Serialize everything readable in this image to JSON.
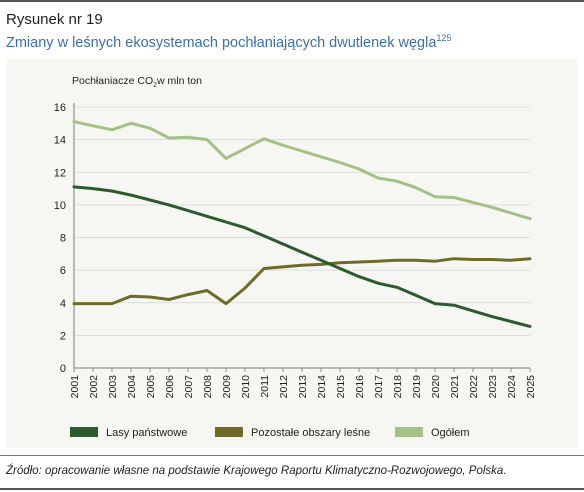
{
  "figure": {
    "number": "Rysunek nr 19",
    "title": "Zmiany w leśnych ekosystemach pochłaniających dwutlenek węgla",
    "title_footnote": "125",
    "source": "Źródło: opracowanie własne na podstawie Krajowego Raportu Klimatyczno-Rozwojowego, Polska."
  },
  "chart_data": {
    "type": "line",
    "ylabel_prefix": "Pochłaniacze CO",
    "ylabel_sub": "2",
    "ylabel_suffix": "w mln ton",
    "ylim": [
      0,
      16
    ],
    "yticks": [
      0,
      2,
      4,
      6,
      8,
      10,
      12,
      14,
      16
    ],
    "grid": true,
    "legend_position": "bottom",
    "x": [
      "2001",
      "2002",
      "2003",
      "2004",
      "2005",
      "2006",
      "2007",
      "2008",
      "2009",
      "2010",
      "2011",
      "2012",
      "2013",
      "2014",
      "2015",
      "2016",
      "2017",
      "2018",
      "2019",
      "2020",
      "2021",
      "2022",
      "2023",
      "2024",
      "2025"
    ],
    "series": [
      {
        "name": "Lasy państwowe",
        "color": "#2b5a2e",
        "values": [
          11.1,
          11.0,
          10.85,
          10.6,
          10.3,
          10.0,
          9.65,
          9.3,
          8.95,
          8.6,
          8.1,
          7.6,
          7.1,
          6.6,
          6.1,
          5.6,
          5.2,
          4.95,
          4.45,
          3.95,
          3.85,
          3.5,
          3.15,
          2.85,
          2.55
        ]
      },
      {
        "name": "Pozostałe obszary leśne",
        "color": "#6e6a28",
        "values": [
          3.95,
          3.95,
          3.95,
          4.4,
          4.35,
          4.2,
          4.5,
          4.75,
          3.95,
          4.9,
          6.1,
          6.2,
          6.3,
          6.35,
          6.45,
          6.5,
          6.55,
          6.6,
          6.6,
          6.55,
          6.7,
          6.65,
          6.65,
          6.6,
          6.7
        ]
      },
      {
        "name": "Ogółem",
        "color": "#a3c185",
        "values": [
          15.1,
          14.85,
          14.6,
          15.0,
          14.7,
          14.1,
          14.15,
          14.0,
          12.85,
          13.45,
          14.05,
          13.65,
          13.3,
          12.95,
          12.6,
          12.2,
          11.65,
          11.45,
          11.05,
          10.5,
          10.45,
          10.15,
          9.85,
          9.5,
          9.15
        ]
      }
    ]
  }
}
